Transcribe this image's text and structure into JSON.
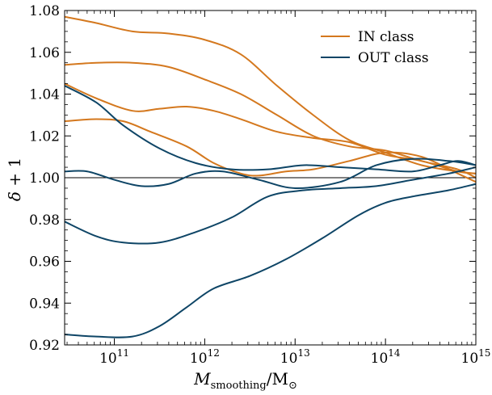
{
  "chart_data": {
    "type": "line",
    "xlabel": "M_smoothing/M_⊙",
    "ylabel": "δ + 1",
    "xscale": "log",
    "xlim_log10": [
      10.45,
      15.0
    ],
    "ylim": [
      0.92,
      1.08
    ],
    "grid": false,
    "legend_position": "top-right",
    "y_ticks": [
      "0.92",
      "0.94",
      "0.96",
      "0.98",
      "1.00",
      "1.02",
      "1.04",
      "1.06",
      "1.08"
    ],
    "x_ticks": [
      {
        "base": "10",
        "exp": "11"
      },
      {
        "base": "10",
        "exp": "12"
      },
      {
        "base": "10",
        "exp": "13"
      },
      {
        "base": "10",
        "exp": "14"
      },
      {
        "base": "10",
        "exp": "15"
      }
    ],
    "reference_line_y": 1.0,
    "colors": {
      "IN class": "#d4781e",
      "OUT class": "#0e4566",
      "reference": "#000000"
    },
    "series": [
      {
        "group": "IN class",
        "x_log10": [
          10.45,
          10.8,
          11.2,
          11.6,
          12.0,
          12.4,
          12.8,
          13.2,
          13.6,
          14.0,
          14.4,
          14.8,
          15.0
        ],
        "values": [
          1.077,
          1.074,
          1.07,
          1.069,
          1.066,
          1.059,
          1.044,
          1.03,
          1.018,
          1.012,
          1.006,
          1.003,
          1.002
        ]
      },
      {
        "group": "IN class",
        "x_log10": [
          10.45,
          10.8,
          11.2,
          11.6,
          12.0,
          12.4,
          12.8,
          13.2,
          13.6,
          14.0,
          14.4,
          14.8,
          15.0
        ],
        "values": [
          1.054,
          1.055,
          1.055,
          1.053,
          1.047,
          1.04,
          1.03,
          1.02,
          1.015,
          1.013,
          1.008,
          1.004,
          1.0
        ]
      },
      {
        "group": "IN class",
        "x_log10": [
          10.45,
          10.8,
          11.2,
          11.5,
          11.8,
          12.1,
          12.4,
          12.8,
          13.2,
          13.6,
          14.0,
          14.4,
          14.8,
          15.0
        ],
        "values": [
          1.045,
          1.038,
          1.032,
          1.033,
          1.034,
          1.032,
          1.028,
          1.022,
          1.019,
          1.017,
          1.011,
          1.008,
          1.003,
          1.002
        ]
      },
      {
        "group": "IN class",
        "x_log10": [
          10.45,
          10.8,
          11.1,
          11.4,
          11.8,
          12.1,
          12.4,
          12.6,
          12.9,
          13.2,
          13.6,
          14.0,
          14.4,
          14.8,
          15.0
        ],
        "values": [
          1.027,
          1.028,
          1.027,
          1.022,
          1.015,
          1.007,
          1.002,
          1.001,
          1.003,
          1.004,
          1.008,
          1.012,
          1.01,
          1.002,
          0.998
        ]
      },
      {
        "group": "OUT class",
        "x_log10": [
          10.45,
          10.8,
          11.1,
          11.5,
          11.9,
          12.3,
          12.7,
          13.1,
          13.5,
          13.9,
          14.3,
          14.6,
          14.8,
          15.0
        ],
        "values": [
          1.044,
          1.036,
          1.025,
          1.014,
          1.007,
          1.004,
          1.004,
          1.006,
          1.005,
          1.004,
          1.003,
          1.006,
          1.008,
          1.006
        ]
      },
      {
        "group": "OUT class",
        "x_log10": [
          10.45,
          10.7,
          11.0,
          11.3,
          11.6,
          11.9,
          12.2,
          12.6,
          13.0,
          13.5,
          13.9,
          14.3,
          14.7,
          15.0
        ],
        "values": [
          1.003,
          1.003,
          0.999,
          0.996,
          0.997,
          1.002,
          1.003,
          0.999,
          0.995,
          0.998,
          1.006,
          1.009,
          1.008,
          1.006
        ]
      },
      {
        "group": "OUT class",
        "x_log10": [
          10.45,
          10.8,
          11.1,
          11.5,
          11.9,
          12.3,
          12.7,
          13.1,
          13.5,
          13.9,
          14.3,
          14.7,
          15.0
        ],
        "values": [
          0.979,
          0.972,
          0.969,
          0.969,
          0.974,
          0.981,
          0.991,
          0.994,
          0.995,
          0.996,
          0.999,
          1.002,
          1.005
        ]
      },
      {
        "group": "OUT class",
        "x_log10": [
          10.45,
          10.8,
          11.2,
          11.5,
          11.8,
          12.1,
          12.5,
          12.9,
          13.3,
          13.7,
          14.0,
          14.3,
          14.7,
          15.0
        ],
        "values": [
          0.925,
          0.924,
          0.924,
          0.929,
          0.938,
          0.947,
          0.953,
          0.961,
          0.971,
          0.982,
          0.988,
          0.991,
          0.994,
          0.997
        ]
      }
    ],
    "legend": [
      {
        "label": "IN class",
        "color": "#d4781e"
      },
      {
        "label": "OUT class",
        "color": "#0e4566"
      }
    ]
  }
}
